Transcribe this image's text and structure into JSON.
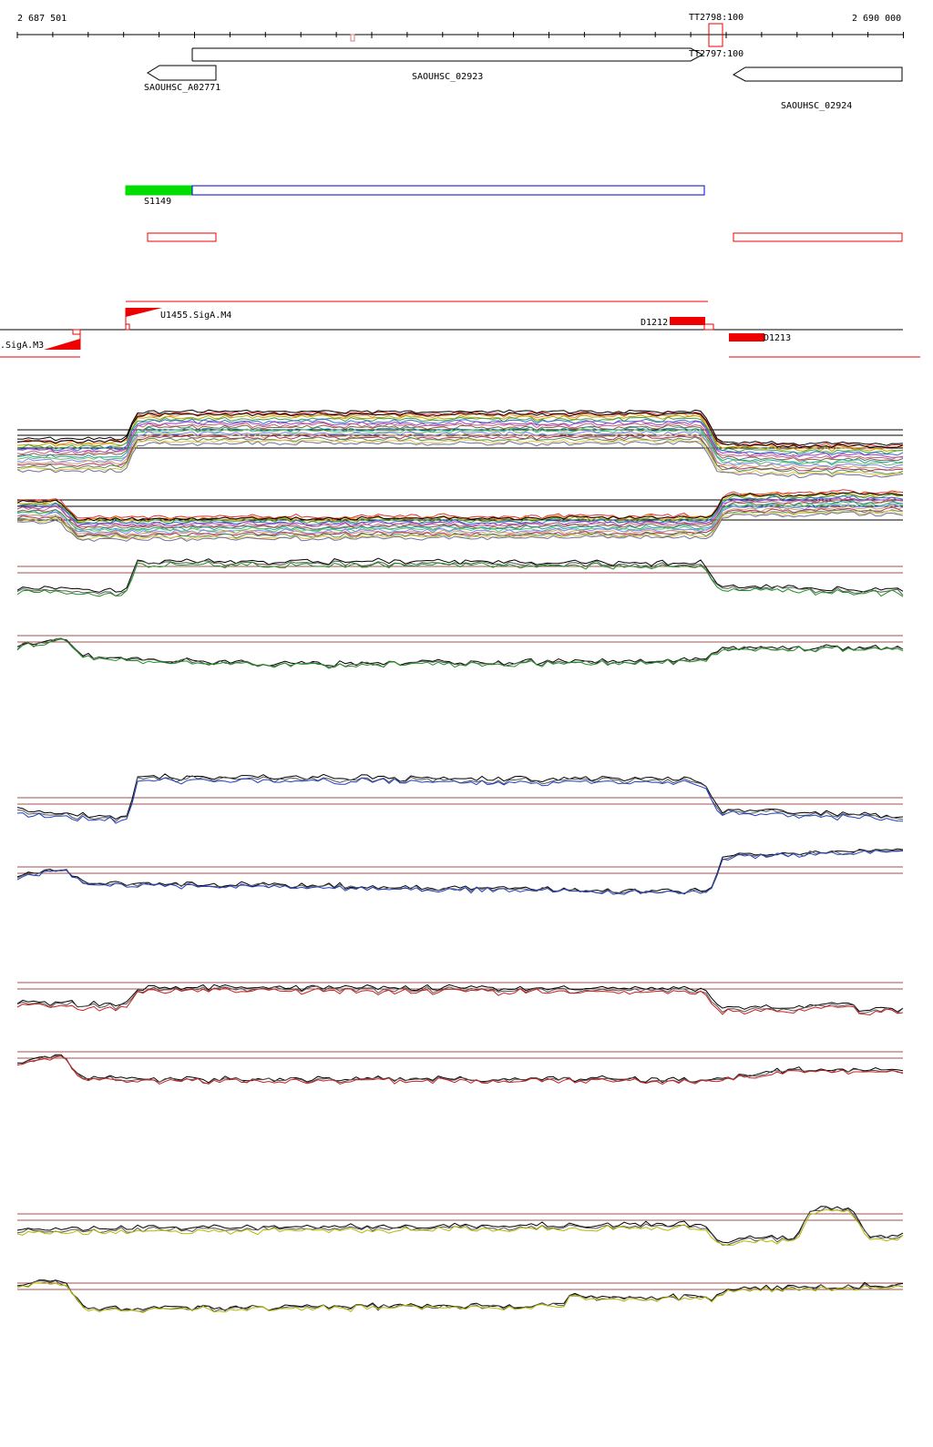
{
  "coords": {
    "start_label": "2 687 501",
    "end_label": "2 690 000"
  },
  "terminators": [
    {
      "label": "TT2798:100"
    },
    {
      "label": "TT2797:100"
    }
  ],
  "genes": [
    {
      "label": "SAOUHSC_A02771",
      "strand": "-"
    },
    {
      "label": "SAOUHSC_02923",
      "strand": "+"
    },
    {
      "label": "SAOUHSC_02924",
      "strand": "-"
    }
  ],
  "segments": {
    "s_label": "S1149"
  },
  "promoters": [
    {
      "label": "U1455.SigA.M4",
      "strand": "+"
    },
    {
      "label": ".SigA.M3",
      "strand": "-"
    }
  ],
  "downshifts": [
    {
      "label": "D1212"
    },
    {
      "label": "D1213"
    }
  ],
  "colors": {
    "gene_outline": "#000000",
    "segment_green": "#00dd00",
    "segment_blue": "#0000cc",
    "utr_red": "#ee0000",
    "threshold": "#a05050",
    "track_black": "#000000",
    "track_blue": "#2040c0",
    "track_green": "#209020",
    "track_red": "#cc2020",
    "track_yellow": "#b8b800"
  },
  "expression_tracks": [
    {
      "name": "multi-condition-plus",
      "color_set": "multi"
    },
    {
      "name": "multi-condition-minus",
      "color_set": "multi"
    },
    {
      "name": "green-plus",
      "color": "track_green"
    },
    {
      "name": "green-minus",
      "color": "track_green"
    },
    {
      "name": "blue-plus",
      "color": "track_blue"
    },
    {
      "name": "blue-minus",
      "color": "track_blue"
    },
    {
      "name": "red-plus",
      "color": "track_red"
    },
    {
      "name": "red-minus",
      "color": "track_red"
    },
    {
      "name": "yellow-plus",
      "color": "track_yellow"
    },
    {
      "name": "yellow-minus",
      "color": "track_yellow"
    }
  ]
}
